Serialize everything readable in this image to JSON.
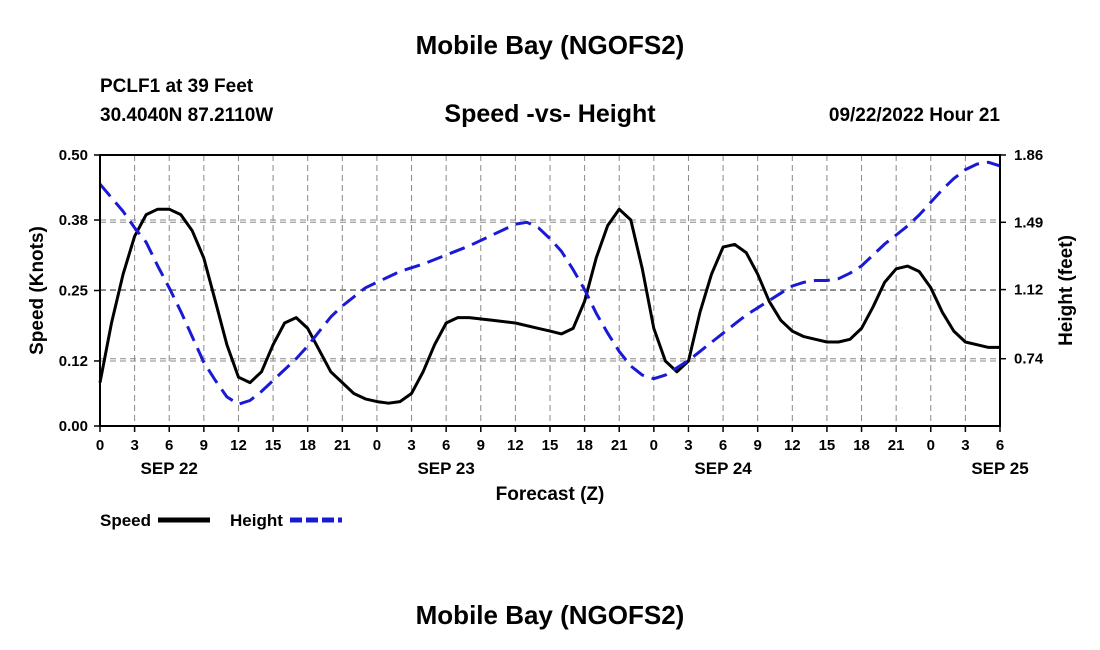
{
  "header": {
    "title": "Mobile Bay (NGOFS2)",
    "station": "PCLF1 at 39 Feet",
    "coords": "30.4040N  87.2110W",
    "subtitle": "Speed -vs- Height",
    "datetime": "09/22/2022 Hour 21"
  },
  "footer": {
    "title": "Mobile Bay (NGOFS2)"
  },
  "chart_data": {
    "type": "line",
    "title": "Speed -vs- Height",
    "xlabel": "Forecast (Z)",
    "ylabel": "Speed (Knots)",
    "y2label": "Height (feet)",
    "x_tick_labels": [
      "0",
      "3",
      "6",
      "9",
      "12",
      "15",
      "18",
      "21",
      "0",
      "3",
      "6",
      "9",
      "12",
      "15",
      "18",
      "21",
      "0",
      "3",
      "6",
      "9",
      "12",
      "15",
      "18",
      "21",
      "0",
      "3",
      "6"
    ],
    "date_labels": [
      {
        "label": "SEP 22",
        "hour": 6
      },
      {
        "label": "SEP 23",
        "hour": 30
      },
      {
        "label": "SEP 24",
        "hour": 54
      },
      {
        "label": "SEP 25",
        "hour": 78
      }
    ],
    "xlim": [
      0,
      78
    ],
    "ylim": [
      0,
      0.5
    ],
    "y_ticks": [
      "0.00",
      "0.12",
      "0.25",
      "0.38",
      "0.50"
    ],
    "y2lim": [
      0.37,
      1.86
    ],
    "y2_ticks": [
      "0.74",
      "1.12",
      "1.49",
      "1.86"
    ],
    "grid": true,
    "legend_position": "bottom-left",
    "series": [
      {
        "name": "Speed",
        "axis": "left",
        "color": "#000000",
        "style": "solid",
        "points": [
          [
            0,
            0.08
          ],
          [
            1,
            0.19
          ],
          [
            2,
            0.28
          ],
          [
            3,
            0.35
          ],
          [
            4,
            0.39
          ],
          [
            5,
            0.4
          ],
          [
            6,
            0.4
          ],
          [
            7,
            0.39
          ],
          [
            8,
            0.36
          ],
          [
            9,
            0.31
          ],
          [
            10,
            0.23
          ],
          [
            11,
            0.15
          ],
          [
            12,
            0.09
          ],
          [
            13,
            0.08
          ],
          [
            14,
            0.1
          ],
          [
            15,
            0.15
          ],
          [
            16,
            0.19
          ],
          [
            17,
            0.2
          ],
          [
            18,
            0.18
          ],
          [
            19,
            0.14
          ],
          [
            20,
            0.1
          ],
          [
            21,
            0.08
          ],
          [
            22,
            0.06
          ],
          [
            23,
            0.05
          ],
          [
            24,
            0.045
          ],
          [
            25,
            0.042
          ],
          [
            26,
            0.045
          ],
          [
            27,
            0.06
          ],
          [
            28,
            0.1
          ],
          [
            29,
            0.15
          ],
          [
            30,
            0.19
          ],
          [
            31,
            0.2
          ],
          [
            32,
            0.2
          ],
          [
            34,
            0.195
          ],
          [
            36,
            0.19
          ],
          [
            38,
            0.18
          ],
          [
            39,
            0.175
          ],
          [
            40,
            0.17
          ],
          [
            41,
            0.18
          ],
          [
            42,
            0.23
          ],
          [
            43,
            0.31
          ],
          [
            44,
            0.37
          ],
          [
            45,
            0.4
          ],
          [
            46,
            0.38
          ],
          [
            47,
            0.29
          ],
          [
            48,
            0.18
          ],
          [
            49,
            0.12
          ],
          [
            50,
            0.1
          ],
          [
            51,
            0.12
          ],
          [
            52,
            0.21
          ],
          [
            53,
            0.28
          ],
          [
            54,
            0.33
          ],
          [
            55,
            0.335
          ],
          [
            56,
            0.32
          ],
          [
            57,
            0.28
          ],
          [
            58,
            0.23
          ],
          [
            59,
            0.195
          ],
          [
            60,
            0.175
          ],
          [
            61,
            0.165
          ],
          [
            62,
            0.16
          ],
          [
            63,
            0.155
          ],
          [
            64,
            0.155
          ],
          [
            65,
            0.16
          ],
          [
            66,
            0.18
          ],
          [
            67,
            0.22
          ],
          [
            68,
            0.265
          ],
          [
            69,
            0.29
          ],
          [
            70,
            0.295
          ],
          [
            71,
            0.285
          ],
          [
            72,
            0.255
          ],
          [
            73,
            0.21
          ],
          [
            74,
            0.175
          ],
          [
            75,
            0.155
          ],
          [
            76,
            0.15
          ],
          [
            77,
            0.145
          ],
          [
            78,
            0.145
          ]
        ]
      },
      {
        "name": "Height",
        "axis": "right",
        "color": "#1a1ad6",
        "style": "dashed",
        "points": [
          [
            0,
            1.7
          ],
          [
            2,
            1.55
          ],
          [
            3,
            1.46
          ],
          [
            4,
            1.38
          ],
          [
            5,
            1.25
          ],
          [
            6,
            1.13
          ],
          [
            7,
            1.0
          ],
          [
            8,
            0.86
          ],
          [
            9,
            0.72
          ],
          [
            10,
            0.62
          ],
          [
            11,
            0.53
          ],
          [
            12,
            0.49
          ],
          [
            13,
            0.51
          ],
          [
            14,
            0.56
          ],
          [
            15,
            0.62
          ],
          [
            16,
            0.68
          ],
          [
            17,
            0.74
          ],
          [
            18,
            0.81
          ],
          [
            19,
            0.89
          ],
          [
            20,
            0.97
          ],
          [
            21,
            1.03
          ],
          [
            22,
            1.08
          ],
          [
            23,
            1.13
          ],
          [
            24,
            1.16
          ],
          [
            25,
            1.19
          ],
          [
            26,
            1.22
          ],
          [
            28,
            1.26
          ],
          [
            30,
            1.31
          ],
          [
            32,
            1.36
          ],
          [
            34,
            1.42
          ],
          [
            35,
            1.45
          ],
          [
            36,
            1.48
          ],
          [
            37,
            1.49
          ],
          [
            38,
            1.46
          ],
          [
            39,
            1.4
          ],
          [
            40,
            1.33
          ],
          [
            41,
            1.23
          ],
          [
            42,
            1.12
          ],
          [
            43,
            0.99
          ],
          [
            44,
            0.88
          ],
          [
            45,
            0.78
          ],
          [
            46,
            0.7
          ],
          [
            47,
            0.65
          ],
          [
            48,
            0.63
          ],
          [
            49,
            0.65
          ],
          [
            50,
            0.69
          ],
          [
            51,
            0.73
          ],
          [
            52,
            0.78
          ],
          [
            53,
            0.83
          ],
          [
            54,
            0.88
          ],
          [
            55,
            0.93
          ],
          [
            56,
            0.98
          ],
          [
            57,
            1.02
          ],
          [
            58,
            1.06
          ],
          [
            59,
            1.1
          ],
          [
            60,
            1.14
          ],
          [
            61,
            1.16
          ],
          [
            62,
            1.17
          ],
          [
            63,
            1.17
          ],
          [
            64,
            1.18
          ],
          [
            65,
            1.21
          ],
          [
            66,
            1.25
          ],
          [
            67,
            1.31
          ],
          [
            68,
            1.37
          ],
          [
            69,
            1.42
          ],
          [
            70,
            1.47
          ],
          [
            71,
            1.53
          ],
          [
            72,
            1.6
          ],
          [
            73,
            1.67
          ],
          [
            74,
            1.73
          ],
          [
            75,
            1.78
          ],
          [
            76,
            1.81
          ],
          [
            77,
            1.82
          ],
          [
            78,
            1.8
          ]
        ]
      }
    ]
  }
}
